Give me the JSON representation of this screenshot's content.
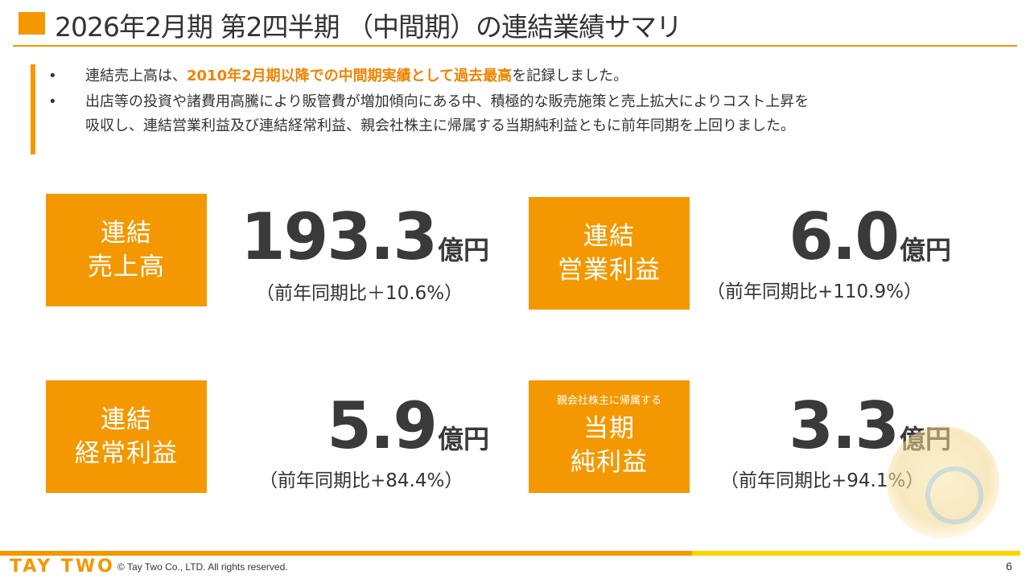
{
  "header": {
    "title": "2026年2月期 第2四半期 （中間期）の連結業績サマリ"
  },
  "summary": {
    "bullets": [
      {
        "marker": "•",
        "before": "連結売上高は、",
        "highlight": "2010年2月期以降での中間期実績として過去最高",
        "after": "を記録しました。"
      },
      {
        "marker": "•",
        "line1": "出店等の投資や諸費用高騰により販管費が増加傾向にある中、積極的な販売施策と売上拡大によりコスト上昇を",
        "line2": "吸収し、連結営業利益及び連結経常利益、親会社株主に帰属する当期純利益ともに前年同期を上回りました。"
      }
    ]
  },
  "kpis": [
    {
      "label_line1": "連結",
      "label_line2": "売上高",
      "value": "193.3",
      "unit": "億円",
      "change": "（前年同期比＋10.6%）"
    },
    {
      "label_line1": "連結",
      "label_line2": "営業利益",
      "value": "6.0",
      "unit": "億円",
      "change": "（前年同期比+110.9%）"
    },
    {
      "label_line1": "連結",
      "label_line2": "経常利益",
      "value": "5.9",
      "unit": "億円",
      "change": "（前年同期比+84.4%）"
    },
    {
      "sublabel": "親会社株主に帰属する",
      "label_line1": "当期",
      "label_line2": "純利益",
      "value": "3.3",
      "unit": "億円",
      "change": "（前年同期比+94.1%）"
    }
  ],
  "footer": {
    "logo": "TAY TWO",
    "copyright": "© Tay Two Co., LTD. All rights reserved.",
    "page_number": "6"
  },
  "colors": {
    "accent": "#f39800",
    "highlight_text": "#f08300",
    "footer_secondary": "#ffd200"
  }
}
